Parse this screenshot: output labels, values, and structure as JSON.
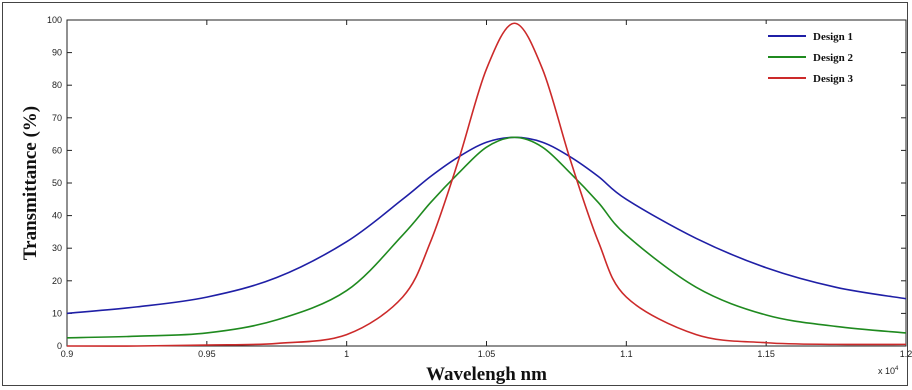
{
  "chart_data": {
    "type": "line",
    "xlabel": "Wavelengh nm",
    "ylabel": "Transmittance (%)",
    "x_multiplier_label": "x 10",
    "x_multiplier_exponent": "4",
    "xlim": [
      0.9,
      1.2
    ],
    "ylim": [
      0,
      100
    ],
    "x_ticks": [
      0.9,
      0.95,
      1,
      1.05,
      1.1,
      1.15,
      1.2
    ],
    "x_tick_labels": [
      "0.9",
      "0.95",
      "1",
      "1.05",
      "1.1",
      "1.15",
      "1.2"
    ],
    "y_ticks": [
      0,
      10,
      20,
      30,
      40,
      50,
      60,
      70,
      80,
      90,
      100
    ],
    "y_tick_labels": [
      "0",
      "10",
      "20",
      "30",
      "40",
      "50",
      "60",
      "70",
      "80",
      "90",
      "100"
    ],
    "grid": false,
    "legend_position": "top-right",
    "x": [
      0.9,
      0.925,
      0.95,
      0.975,
      1.0,
      1.02,
      1.03,
      1.04,
      1.05,
      1.06,
      1.07,
      1.08,
      1.09,
      1.1,
      1.125,
      1.15,
      1.175,
      1.2
    ],
    "series": [
      {
        "name": "Design 1",
        "color": "#1f1fa6",
        "values": [
          10,
          12,
          15,
          21,
          32,
          45,
          52,
          58,
          62.5,
          64,
          62.5,
          58,
          52,
          45,
          33,
          24,
          18,
          14.5
        ]
      },
      {
        "name": "Design 2",
        "color": "#1f8a1f",
        "values": [
          2.5,
          3,
          4,
          8,
          17,
          34,
          44,
          53,
          61,
          64,
          61,
          53,
          44,
          34,
          18,
          9.5,
          6,
          4
        ]
      },
      {
        "name": "Design 3",
        "color": "#cc2a2a",
        "values": [
          0,
          0,
          0.3,
          0.8,
          3.5,
          15,
          32,
          57,
          85,
          99,
          85,
          57,
          32,
          15,
          3.5,
          1,
          0.5,
          0.5
        ]
      }
    ]
  }
}
